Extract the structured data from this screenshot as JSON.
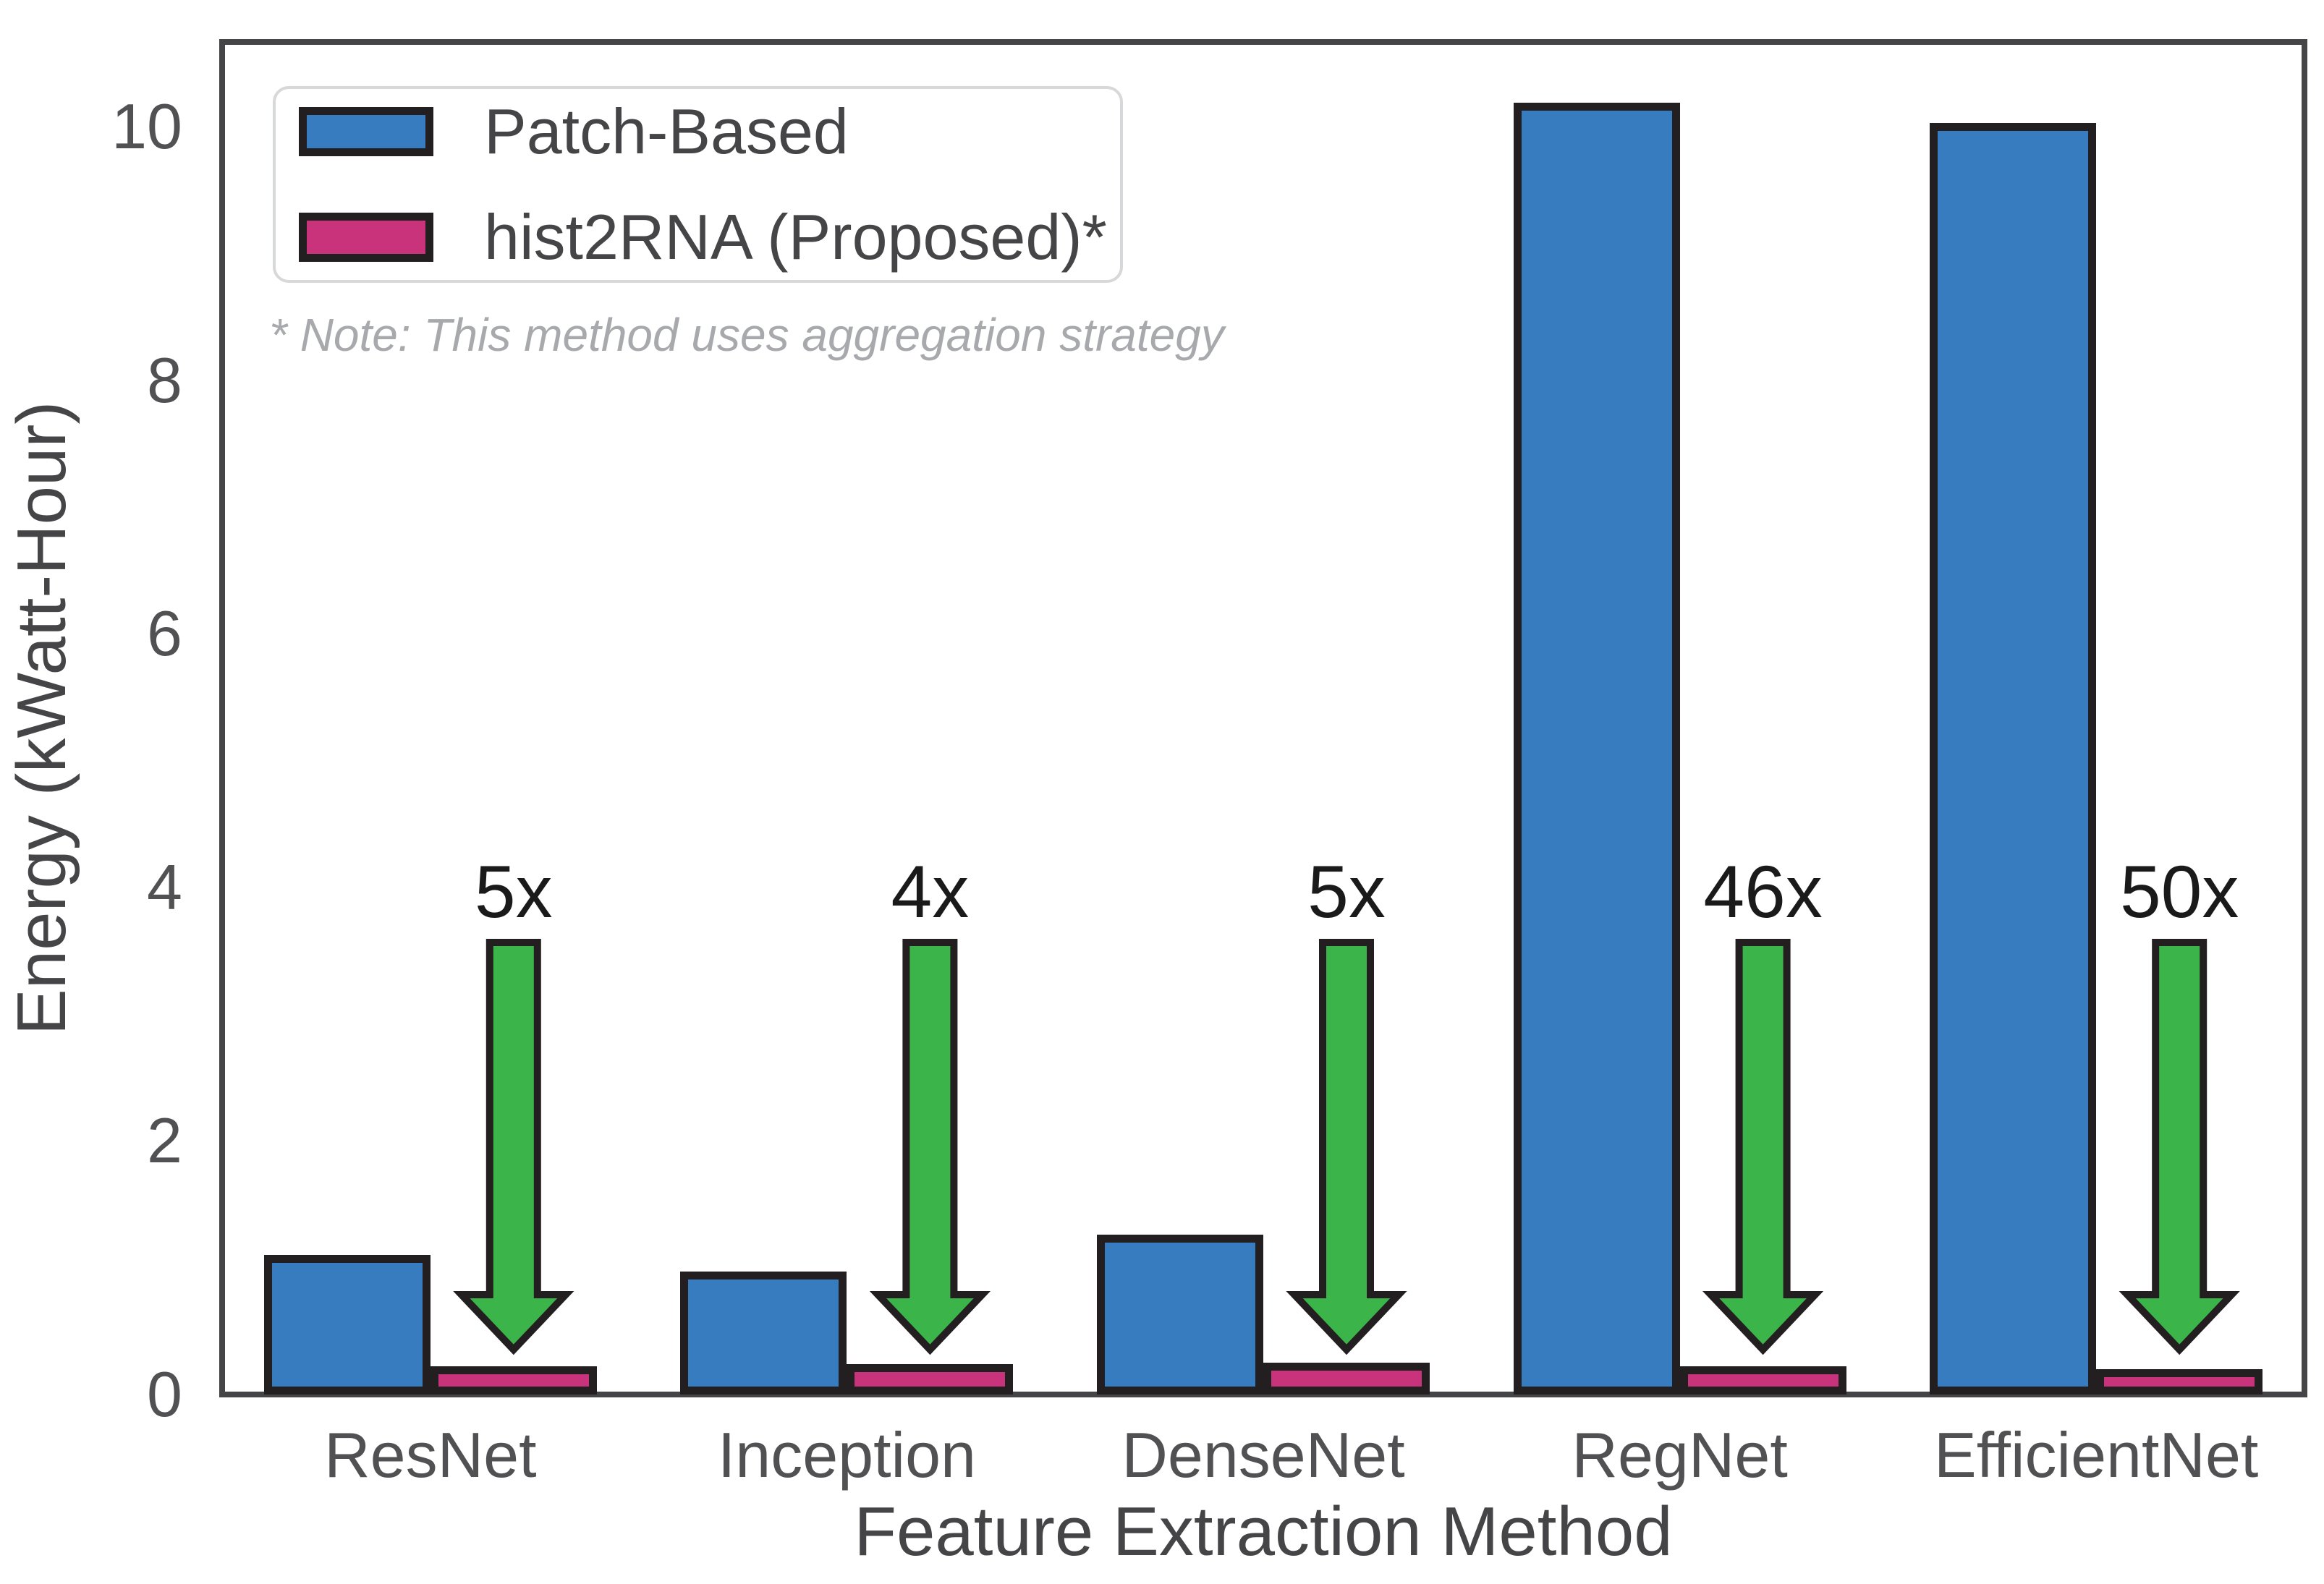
{
  "chart_data": {
    "type": "bar",
    "categories": [
      "ResNet",
      "Inception",
      "DenseNet",
      "RegNet",
      "EfficientNet"
    ],
    "series": [
      {
        "name": "Patch-Based",
        "color": "#377CBE",
        "values": [
          1.1,
          0.97,
          1.26,
          10.19,
          10.03
        ]
      },
      {
        "name": "hist2RNA (Proposed)*",
        "color": "#C9337B",
        "values": [
          0.22,
          0.24,
          0.25,
          0.22,
          0.2
        ]
      }
    ],
    "reduction_labels": [
      "5x",
      "4x",
      "5x",
      "46x",
      "50x"
    ],
    "xlabel": "Feature Extraction Method",
    "ylabel": "Energy (kWatt-Hour)",
    "yticks": [
      0,
      2,
      4,
      6,
      8,
      10
    ],
    "ylim": [
      0,
      10.67
    ],
    "grid": false,
    "legend_position": "upper left",
    "note": "* Note: This method uses aggregation strategy",
    "arrow_color": "#3BB54A",
    "bar_edge_color": "#231F20"
  }
}
